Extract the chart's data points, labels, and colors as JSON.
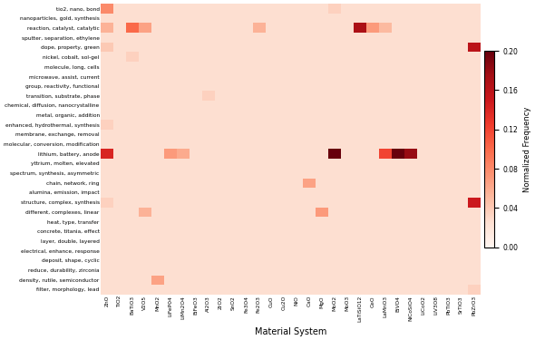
{
  "y_labels": [
    "tio2, nano, bond",
    "nanoparticles, gold, synthesis",
    "reaction, catalyst, catalytic",
    "sputter, separation, ethylene",
    "dope, property, green",
    "nickel, cobalt, sol-gel",
    "molecule, long, cells",
    "microwave, assist, current",
    "group, reactivity, functional",
    "transition, substrate, phase",
    "chemical, diffusion, nanocrystalline",
    "metal, organic, addition",
    "enhanced, hydrothermal, synthesis",
    "membrane, exchange, removal",
    "molecular, conversion, modification",
    "lithium, battery, anode",
    "yttrium, molten, elevated",
    "spectrum, synthesis, asymmetric",
    "chain, network, ring",
    "alumina, emission, impact",
    "structure, complex, synthesis",
    "different, complexes, linear",
    "heat, type, transfer",
    "concrete, titania, effect",
    "layer, double, layered",
    "electrical, enhance, response",
    "deposit, shape, cyclic",
    "reduce, durability, zirconia",
    "density, rutile, semiconductor",
    "filter, morphology, lead"
  ],
  "x_labels": [
    "ZnO",
    "TiO2",
    "BaTiO3",
    "V2O5",
    "MnO2",
    "LiFeP04",
    "LiMn2O4",
    "BiFeO3",
    "Al2O3",
    "ZrO2",
    "SnO2",
    "Fe3O4",
    "Fe2O3",
    "CuO",
    "Cu2O",
    "NiO",
    "CaO",
    "MgO",
    "MoO2",
    "MoO3",
    "LaTiSiO12",
    "CeO",
    "LaMnO3",
    "BiVO4",
    "NiCoSiO4",
    "LiCoO2",
    "LiV3O8",
    "PbTiO3",
    "SrTiO3",
    "PbZrO3"
  ],
  "vmin": 0.0,
  "vmax": 0.2,
  "colorbar_ticks": [
    0.0,
    0.04,
    0.08,
    0.12,
    0.16,
    0.2
  ],
  "colorbar_label": "Normalized Frequency",
  "xlabel": "Material System",
  "cmap": "Reds",
  "baseline": 0.025,
  "data": [
    [
      0.08,
      0.025,
      0.025,
      0.025,
      0.025,
      0.025,
      0.025,
      0.025,
      0.025,
      0.025,
      0.025,
      0.025,
      0.025,
      0.025,
      0.025,
      0.025,
      0.025,
      0.025,
      0.035,
      0.025,
      0.025,
      0.025,
      0.025,
      0.025,
      0.025,
      0.025,
      0.025,
      0.025,
      0.025,
      0.025
    ],
    [
      0.025,
      0.025,
      0.025,
      0.025,
      0.025,
      0.025,
      0.025,
      0.025,
      0.025,
      0.025,
      0.025,
      0.025,
      0.025,
      0.025,
      0.025,
      0.025,
      0.025,
      0.025,
      0.025,
      0.025,
      0.025,
      0.025,
      0.025,
      0.025,
      0.025,
      0.025,
      0.025,
      0.025,
      0.025,
      0.025
    ],
    [
      0.055,
      0.025,
      0.1,
      0.065,
      0.025,
      0.025,
      0.025,
      0.025,
      0.025,
      0.025,
      0.025,
      0.025,
      0.055,
      0.025,
      0.025,
      0.025,
      0.025,
      0.025,
      0.025,
      0.025,
      0.17,
      0.07,
      0.05,
      0.025,
      0.025,
      0.025,
      0.025,
      0.025,
      0.025,
      0.025
    ],
    [
      0.025,
      0.025,
      0.025,
      0.025,
      0.025,
      0.025,
      0.025,
      0.025,
      0.025,
      0.025,
      0.025,
      0.025,
      0.025,
      0.025,
      0.025,
      0.025,
      0.025,
      0.025,
      0.025,
      0.025,
      0.025,
      0.025,
      0.025,
      0.025,
      0.025,
      0.025,
      0.025,
      0.025,
      0.025,
      0.025
    ],
    [
      0.04,
      0.025,
      0.025,
      0.025,
      0.025,
      0.025,
      0.025,
      0.025,
      0.025,
      0.025,
      0.025,
      0.025,
      0.025,
      0.025,
      0.025,
      0.025,
      0.025,
      0.025,
      0.025,
      0.025,
      0.025,
      0.025,
      0.025,
      0.025,
      0.025,
      0.025,
      0.025,
      0.025,
      0.025,
      0.16
    ],
    [
      0.025,
      0.025,
      0.035,
      0.025,
      0.025,
      0.025,
      0.025,
      0.025,
      0.025,
      0.025,
      0.025,
      0.025,
      0.025,
      0.025,
      0.025,
      0.025,
      0.025,
      0.025,
      0.025,
      0.025,
      0.025,
      0.025,
      0.025,
      0.025,
      0.025,
      0.025,
      0.025,
      0.025,
      0.025,
      0.025
    ],
    [
      0.025,
      0.025,
      0.025,
      0.025,
      0.025,
      0.025,
      0.025,
      0.025,
      0.025,
      0.025,
      0.025,
      0.025,
      0.025,
      0.025,
      0.025,
      0.025,
      0.025,
      0.025,
      0.025,
      0.025,
      0.025,
      0.025,
      0.025,
      0.025,
      0.025,
      0.025,
      0.025,
      0.025,
      0.025,
      0.025
    ],
    [
      0.025,
      0.025,
      0.025,
      0.025,
      0.025,
      0.025,
      0.025,
      0.025,
      0.025,
      0.025,
      0.025,
      0.025,
      0.025,
      0.025,
      0.025,
      0.025,
      0.025,
      0.025,
      0.025,
      0.025,
      0.025,
      0.025,
      0.025,
      0.025,
      0.025,
      0.025,
      0.025,
      0.025,
      0.025,
      0.025
    ],
    [
      0.025,
      0.025,
      0.025,
      0.025,
      0.025,
      0.025,
      0.025,
      0.025,
      0.025,
      0.025,
      0.025,
      0.025,
      0.025,
      0.025,
      0.025,
      0.025,
      0.025,
      0.025,
      0.025,
      0.025,
      0.025,
      0.025,
      0.025,
      0.025,
      0.025,
      0.025,
      0.025,
      0.025,
      0.025,
      0.025
    ],
    [
      0.025,
      0.025,
      0.025,
      0.025,
      0.025,
      0.025,
      0.025,
      0.025,
      0.035,
      0.025,
      0.025,
      0.025,
      0.025,
      0.025,
      0.025,
      0.025,
      0.025,
      0.025,
      0.025,
      0.025,
      0.025,
      0.025,
      0.025,
      0.025,
      0.025,
      0.025,
      0.025,
      0.025,
      0.025,
      0.025
    ],
    [
      0.025,
      0.025,
      0.025,
      0.025,
      0.025,
      0.025,
      0.025,
      0.025,
      0.025,
      0.025,
      0.025,
      0.025,
      0.025,
      0.025,
      0.025,
      0.025,
      0.025,
      0.025,
      0.025,
      0.025,
      0.025,
      0.025,
      0.025,
      0.025,
      0.025,
      0.025,
      0.025,
      0.025,
      0.025,
      0.025
    ],
    [
      0.025,
      0.025,
      0.025,
      0.025,
      0.025,
      0.025,
      0.025,
      0.025,
      0.025,
      0.025,
      0.025,
      0.025,
      0.025,
      0.025,
      0.025,
      0.025,
      0.025,
      0.025,
      0.025,
      0.025,
      0.025,
      0.025,
      0.025,
      0.025,
      0.025,
      0.025,
      0.025,
      0.025,
      0.025,
      0.025
    ],
    [
      0.035,
      0.025,
      0.025,
      0.025,
      0.025,
      0.025,
      0.025,
      0.025,
      0.025,
      0.025,
      0.025,
      0.025,
      0.025,
      0.025,
      0.025,
      0.025,
      0.025,
      0.025,
      0.025,
      0.025,
      0.025,
      0.025,
      0.025,
      0.025,
      0.025,
      0.025,
      0.025,
      0.025,
      0.025,
      0.025
    ],
    [
      0.025,
      0.025,
      0.025,
      0.025,
      0.025,
      0.025,
      0.025,
      0.025,
      0.025,
      0.025,
      0.025,
      0.025,
      0.025,
      0.025,
      0.025,
      0.025,
      0.025,
      0.025,
      0.025,
      0.025,
      0.025,
      0.025,
      0.025,
      0.025,
      0.025,
      0.025,
      0.025,
      0.025,
      0.025,
      0.025
    ],
    [
      0.025,
      0.025,
      0.025,
      0.025,
      0.025,
      0.025,
      0.025,
      0.025,
      0.025,
      0.025,
      0.025,
      0.025,
      0.025,
      0.025,
      0.025,
      0.025,
      0.025,
      0.025,
      0.025,
      0.025,
      0.025,
      0.025,
      0.025,
      0.025,
      0.025,
      0.025,
      0.025,
      0.025,
      0.025,
      0.025
    ],
    [
      0.14,
      0.025,
      0.025,
      0.025,
      0.025,
      0.07,
      0.06,
      0.025,
      0.025,
      0.025,
      0.025,
      0.025,
      0.025,
      0.025,
      0.025,
      0.025,
      0.025,
      0.025,
      0.2,
      0.025,
      0.025,
      0.025,
      0.12,
      0.2,
      0.18,
      0.025,
      0.025,
      0.025,
      0.025,
      0.025
    ],
    [
      0.025,
      0.025,
      0.025,
      0.025,
      0.025,
      0.025,
      0.025,
      0.025,
      0.025,
      0.025,
      0.025,
      0.025,
      0.025,
      0.025,
      0.025,
      0.025,
      0.025,
      0.025,
      0.025,
      0.025,
      0.025,
      0.025,
      0.025,
      0.025,
      0.025,
      0.025,
      0.025,
      0.025,
      0.025,
      0.025
    ],
    [
      0.025,
      0.025,
      0.025,
      0.025,
      0.025,
      0.025,
      0.025,
      0.025,
      0.025,
      0.025,
      0.025,
      0.025,
      0.025,
      0.025,
      0.025,
      0.025,
      0.025,
      0.025,
      0.025,
      0.025,
      0.025,
      0.025,
      0.025,
      0.025,
      0.025,
      0.025,
      0.025,
      0.025,
      0.025,
      0.025
    ],
    [
      0.025,
      0.025,
      0.025,
      0.025,
      0.025,
      0.025,
      0.025,
      0.025,
      0.025,
      0.025,
      0.025,
      0.025,
      0.025,
      0.025,
      0.025,
      0.025,
      0.065,
      0.025,
      0.025,
      0.025,
      0.025,
      0.025,
      0.025,
      0.025,
      0.025,
      0.025,
      0.025,
      0.025,
      0.025,
      0.025
    ],
    [
      0.025,
      0.025,
      0.025,
      0.025,
      0.025,
      0.025,
      0.025,
      0.025,
      0.025,
      0.025,
      0.025,
      0.025,
      0.025,
      0.025,
      0.025,
      0.025,
      0.025,
      0.025,
      0.025,
      0.025,
      0.025,
      0.025,
      0.025,
      0.025,
      0.025,
      0.025,
      0.025,
      0.025,
      0.025,
      0.025
    ],
    [
      0.035,
      0.025,
      0.025,
      0.025,
      0.025,
      0.025,
      0.025,
      0.025,
      0.025,
      0.025,
      0.025,
      0.025,
      0.025,
      0.025,
      0.025,
      0.025,
      0.025,
      0.025,
      0.025,
      0.025,
      0.025,
      0.025,
      0.025,
      0.025,
      0.025,
      0.025,
      0.025,
      0.025,
      0.025,
      0.15
    ],
    [
      0.025,
      0.025,
      0.025,
      0.055,
      0.025,
      0.025,
      0.025,
      0.025,
      0.025,
      0.025,
      0.025,
      0.025,
      0.025,
      0.025,
      0.025,
      0.025,
      0.025,
      0.07,
      0.025,
      0.025,
      0.025,
      0.025,
      0.025,
      0.025,
      0.025,
      0.025,
      0.025,
      0.025,
      0.025,
      0.025
    ],
    [
      0.025,
      0.025,
      0.025,
      0.025,
      0.025,
      0.025,
      0.025,
      0.025,
      0.025,
      0.025,
      0.025,
      0.025,
      0.025,
      0.025,
      0.025,
      0.025,
      0.025,
      0.025,
      0.025,
      0.025,
      0.025,
      0.025,
      0.025,
      0.025,
      0.025,
      0.025,
      0.025,
      0.025,
      0.025,
      0.025
    ],
    [
      0.025,
      0.025,
      0.025,
      0.025,
      0.025,
      0.025,
      0.025,
      0.025,
      0.025,
      0.025,
      0.025,
      0.025,
      0.025,
      0.025,
      0.025,
      0.025,
      0.025,
      0.025,
      0.025,
      0.025,
      0.025,
      0.025,
      0.025,
      0.025,
      0.025,
      0.025,
      0.025,
      0.025,
      0.025,
      0.025
    ],
    [
      0.025,
      0.025,
      0.025,
      0.025,
      0.025,
      0.025,
      0.025,
      0.025,
      0.025,
      0.025,
      0.025,
      0.025,
      0.025,
      0.025,
      0.025,
      0.025,
      0.025,
      0.025,
      0.025,
      0.025,
      0.025,
      0.025,
      0.025,
      0.025,
      0.025,
      0.025,
      0.025,
      0.025,
      0.025,
      0.025
    ],
    [
      0.025,
      0.025,
      0.025,
      0.025,
      0.025,
      0.025,
      0.025,
      0.025,
      0.025,
      0.025,
      0.025,
      0.025,
      0.025,
      0.025,
      0.025,
      0.025,
      0.025,
      0.025,
      0.025,
      0.025,
      0.025,
      0.025,
      0.025,
      0.025,
      0.025,
      0.025,
      0.025,
      0.025,
      0.025,
      0.025
    ],
    [
      0.025,
      0.025,
      0.025,
      0.025,
      0.025,
      0.025,
      0.025,
      0.025,
      0.025,
      0.025,
      0.025,
      0.025,
      0.025,
      0.025,
      0.025,
      0.025,
      0.025,
      0.025,
      0.025,
      0.025,
      0.025,
      0.025,
      0.025,
      0.025,
      0.025,
      0.025,
      0.025,
      0.025,
      0.025,
      0.025
    ],
    [
      0.025,
      0.025,
      0.025,
      0.025,
      0.025,
      0.025,
      0.025,
      0.025,
      0.025,
      0.025,
      0.025,
      0.025,
      0.025,
      0.025,
      0.025,
      0.025,
      0.025,
      0.025,
      0.025,
      0.025,
      0.025,
      0.025,
      0.025,
      0.025,
      0.025,
      0.025,
      0.025,
      0.025,
      0.025,
      0.025
    ],
    [
      0.025,
      0.025,
      0.025,
      0.025,
      0.065,
      0.025,
      0.025,
      0.025,
      0.025,
      0.025,
      0.025,
      0.025,
      0.025,
      0.025,
      0.025,
      0.025,
      0.025,
      0.025,
      0.025,
      0.025,
      0.025,
      0.025,
      0.025,
      0.025,
      0.025,
      0.025,
      0.025,
      0.025,
      0.025,
      0.025
    ],
    [
      0.025,
      0.025,
      0.025,
      0.025,
      0.025,
      0.025,
      0.025,
      0.025,
      0.025,
      0.025,
      0.025,
      0.025,
      0.025,
      0.025,
      0.025,
      0.025,
      0.025,
      0.025,
      0.025,
      0.025,
      0.025,
      0.025,
      0.025,
      0.025,
      0.025,
      0.025,
      0.025,
      0.025,
      0.025,
      0.035
    ]
  ],
  "background_color": "#ffffff",
  "fig_width": 5.9,
  "fig_height": 3.75,
  "dpi": 100
}
